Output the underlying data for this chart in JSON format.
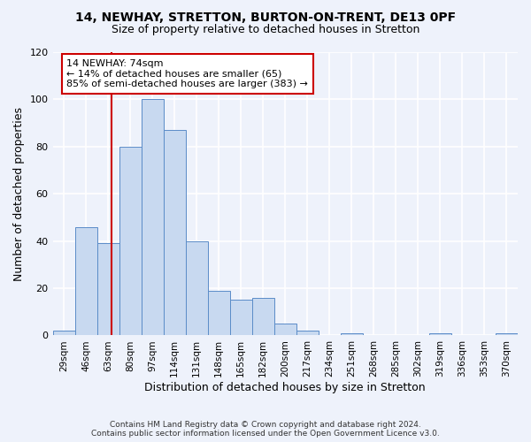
{
  "title1": "14, NEWHAY, STRETTON, BURTON-ON-TRENT, DE13 0PF",
  "title2": "Size of property relative to detached houses in Stretton",
  "xlabel": "Distribution of detached houses by size in Stretton",
  "ylabel": "Number of detached properties",
  "categories": [
    "29sqm",
    "46sqm",
    "63sqm",
    "80sqm",
    "97sqm",
    "114sqm",
    "131sqm",
    "148sqm",
    "165sqm",
    "182sqm",
    "200sqm",
    "217sqm",
    "234sqm",
    "251sqm",
    "268sqm",
    "285sqm",
    "302sqm",
    "319sqm",
    "336sqm",
    "353sqm",
    "370sqm"
  ],
  "values": [
    2,
    46,
    39,
    80,
    100,
    87,
    40,
    19,
    15,
    16,
    5,
    2,
    0,
    1,
    0,
    0,
    0,
    1,
    0,
    0,
    1
  ],
  "bar_color": "#c8d9f0",
  "bar_edge_color": "#5b8cc8",
  "annotation_title": "14 NEWHAY: 74sqm",
  "annotation_line1": "← 14% of detached houses are smaller (65)",
  "annotation_line2": "85% of semi-detached houses are larger (383) →",
  "vline_color": "#cc0000",
  "ylim": [
    0,
    120
  ],
  "yticks": [
    0,
    20,
    40,
    60,
    80,
    100,
    120
  ],
  "footnote1": "Contains HM Land Registry data © Crown copyright and database right 2024.",
  "footnote2": "Contains public sector information licensed under the Open Government Licence v3.0.",
  "bg_color": "#eef2fb"
}
